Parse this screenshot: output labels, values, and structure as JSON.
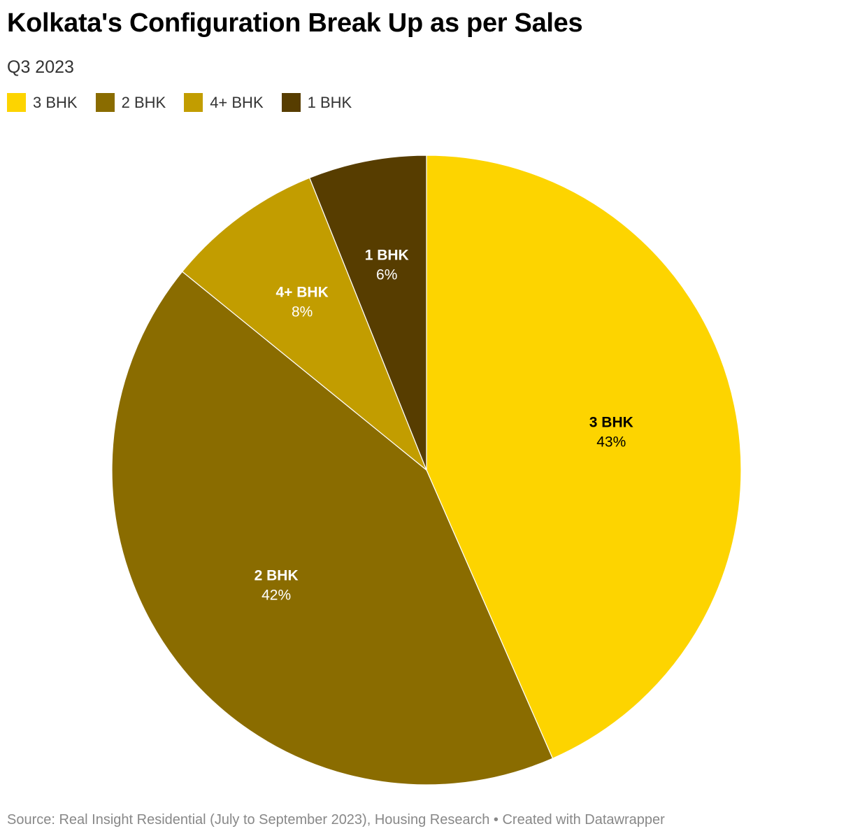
{
  "chart_data": {
    "type": "pie",
    "title": "Kolkata's Configuration Break Up as per Sales",
    "subtitle": "Q3 2023",
    "legend": "top-left",
    "slices": [
      {
        "label": "3 BHK",
        "value": 43,
        "value_label": "43%",
        "color": "#fdd400",
        "text_color": "#000000"
      },
      {
        "label": "2 BHK",
        "value": 42,
        "value_label": "42%",
        "color": "#8a6c00",
        "text_color": "#ffffff"
      },
      {
        "label": "4+ BHK",
        "value": 8,
        "value_label": "8%",
        "color": "#c29d00",
        "text_color": "#ffffff"
      },
      {
        "label": "1 BHK",
        "value": 6,
        "value_label": "6%",
        "color": "#573d00",
        "text_color": "#ffffff"
      }
    ]
  },
  "footer": {
    "source": "Source: Real Insight Residential (July to September 2023), Housing Research • Created with Datawrapper"
  }
}
